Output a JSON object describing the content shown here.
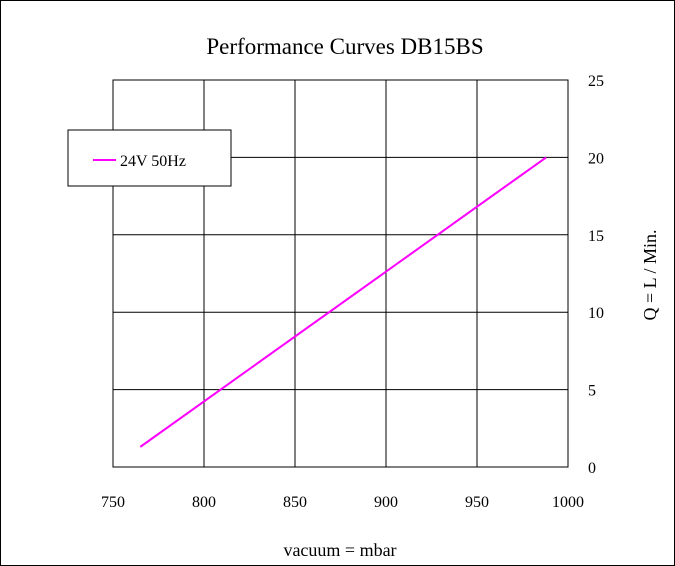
{
  "chart_data": {
    "type": "line",
    "title": "Performance  Curves  DB15BS",
    "xlabel": "vacuum = mbar",
    "ylabel": "Q = L / Min.",
    "xlim": [
      750,
      1000
    ],
    "ylim": [
      0,
      25
    ],
    "x_ticks": [
      "750",
      "800",
      "850",
      "900",
      "950",
      "1000"
    ],
    "y_ticks": [
      "0",
      "5",
      "10",
      "15",
      "20",
      "25"
    ],
    "grid": true,
    "legend_position": "top-left",
    "series": [
      {
        "name": "24V 50Hz",
        "color": "#ff00ff",
        "x": [
          765,
          988
        ],
        "y": [
          1.3,
          20
        ]
      }
    ]
  }
}
